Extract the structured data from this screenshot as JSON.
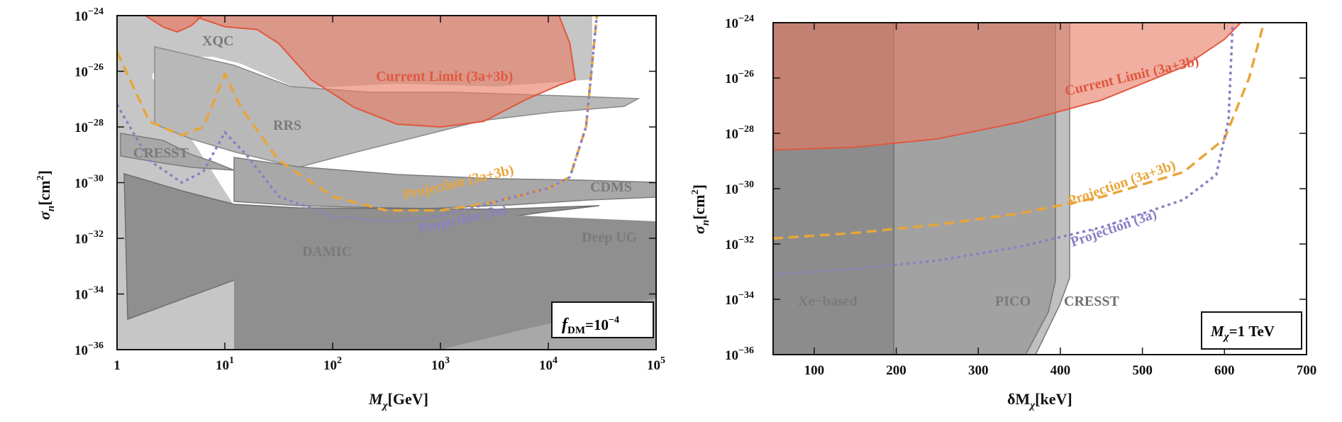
{
  "colors": {
    "limit_fill": "#e87a62",
    "limit_edge": "#e0583f",
    "projection_3a3b": "#e8a53a",
    "projection_3a": "#8a80c4",
    "region_light": "#c4c4c4",
    "region_mid": "#a6a6a6",
    "region_dark": "#8c8c8c",
    "region_label": "#7a7a7a"
  },
  "chart_data": [
    {
      "type": "line",
      "title": "",
      "xlabel_symbol": "M",
      "xlabel_sub": "χ",
      "xlabel_unit": "[GeV]",
      "ylabel_symbol": "σ",
      "ylabel_sub": "n",
      "ylabel_unit": "[cm",
      "ylabel_unit_sup": "2",
      "ylabel_close": "]",
      "x_scale": "log",
      "xlim_log10": [
        0,
        5
      ],
      "ylim_log10": [
        -36,
        -24
      ],
      "x_ticks": [
        {
          "base": "1",
          "exp": ""
        },
        {
          "base": "10",
          "exp": "1"
        },
        {
          "base": "10",
          "exp": "2"
        },
        {
          "base": "10",
          "exp": "3"
        },
        {
          "base": "10",
          "exp": "4"
        },
        {
          "base": "10",
          "exp": "5"
        }
      ],
      "y_ticks": [
        {
          "base": "10",
          "exp": "−24"
        },
        {
          "base": "10",
          "exp": "−26"
        },
        {
          "base": "10",
          "exp": "−28"
        },
        {
          "base": "10",
          "exp": "−30"
        },
        {
          "base": "10",
          "exp": "−32"
        },
        {
          "base": "10",
          "exp": "−34"
        },
        {
          "base": "10",
          "exp": "−36"
        }
      ],
      "annotation_box": {
        "symbol": "f",
        "sub": "DM",
        "text": "=10",
        "sup": "−4"
      },
      "region_labels": [
        "XQC",
        "RRS",
        "CRESST",
        "CDMS",
        "DAMIC",
        "Deep UG"
      ],
      "series": [
        {
          "name": "Current Limit (3a+3b)",
          "style": "filled",
          "points_log10": [
            [
              0.7,
              -24
            ],
            [
              1.0,
              -24.4
            ],
            [
              1.3,
              -24.5
            ],
            [
              1.5,
              -25.0
            ],
            [
              1.8,
              -26.3
            ],
            [
              2.2,
              -27.3
            ],
            [
              2.6,
              -27.9
            ],
            [
              3.0,
              -28.0
            ],
            [
              3.4,
              -27.8
            ],
            [
              3.8,
              -27.0
            ],
            [
              4.1,
              -26.5
            ],
            [
              4.25,
              -26.3
            ],
            [
              4.2,
              -25.0
            ],
            [
              4.1,
              -24.0
            ]
          ]
        },
        {
          "name": "Projection (3a+3b)",
          "style": "dashed",
          "points_log10": [
            [
              0,
              -25.3
            ],
            [
              0.3,
              -27.8
            ],
            [
              0.6,
              -28.3
            ],
            [
              0.8,
              -28.0
            ],
            [
              1.0,
              -26.1
            ],
            [
              1.15,
              -27.3
            ],
            [
              1.5,
              -29.2
            ],
            [
              2.0,
              -30.5
            ],
            [
              2.5,
              -31.0
            ],
            [
              3.0,
              -31.0
            ],
            [
              3.5,
              -30.7
            ],
            [
              4.0,
              -30.2
            ],
            [
              4.2,
              -29.8
            ],
            [
              4.35,
              -28.0
            ],
            [
              4.45,
              -24.0
            ]
          ]
        },
        {
          "name": "Projection (3a)",
          "style": "dotted",
          "points_log10": [
            [
              0,
              -27.2
            ],
            [
              0.3,
              -29.2
            ],
            [
              0.6,
              -30.0
            ],
            [
              0.8,
              -29.6
            ],
            [
              1.0,
              -28.2
            ],
            [
              1.2,
              -29.0
            ],
            [
              1.5,
              -30.5
            ],
            [
              2.0,
              -31.2
            ],
            [
              2.5,
              -31.4
            ],
            [
              3.0,
              -31.2
            ],
            [
              3.5,
              -30.7
            ],
            [
              4.0,
              -30.2
            ],
            [
              4.2,
              -29.8
            ],
            [
              4.35,
              -28.0
            ],
            [
              4.45,
              -24.0
            ]
          ]
        }
      ]
    },
    {
      "type": "line",
      "title": "",
      "xlabel_symbol": "δM",
      "xlabel_sub": "χ",
      "xlabel_unit": "[keV]",
      "ylabel_symbol": "σ",
      "ylabel_sub": "n",
      "ylabel_unit": "[cm",
      "ylabel_unit_sup": "2",
      "ylabel_close": "]",
      "xlim": [
        50,
        700
      ],
      "ylim_log10": [
        -36,
        -24
      ],
      "x_ticks": [
        "100",
        "200",
        "300",
        "400",
        "500",
        "600",
        "700"
      ],
      "y_ticks": [
        {
          "base": "10",
          "exp": "−24"
        },
        {
          "base": "10",
          "exp": "−26"
        },
        {
          "base": "10",
          "exp": "−28"
        },
        {
          "base": "10",
          "exp": "−30"
        },
        {
          "base": "10",
          "exp": "−32"
        },
        {
          "base": "10",
          "exp": "−34"
        },
        {
          "base": "10",
          "exp": "−36"
        }
      ],
      "annotation_box": {
        "symbol": "M",
        "sub": "χ",
        "text": "=1 TeV"
      },
      "region_labels": [
        "Xe−based",
        "PICO",
        "CRESST"
      ],
      "series": [
        {
          "name": "Current Limit (3a+3b)",
          "style": "filled",
          "points": [
            [
              50,
              -28.6
            ],
            [
              150,
              -28.5
            ],
            [
              250,
              -28.2
            ],
            [
              350,
              -27.6
            ],
            [
              450,
              -26.8
            ],
            [
              550,
              -25.6
            ],
            [
              600,
              -24.6
            ],
            [
              620,
              -24.0
            ]
          ]
        },
        {
          "name": "Projection (3a+3b)",
          "style": "dashed",
          "points": [
            [
              50,
              -31.8
            ],
            [
              150,
              -31.6
            ],
            [
              250,
              -31.3
            ],
            [
              350,
              -30.9
            ],
            [
              450,
              -30.3
            ],
            [
              550,
              -29.4
            ],
            [
              600,
              -28.2
            ],
            [
              630,
              -26.0
            ],
            [
              648,
              -24.0
            ]
          ]
        },
        {
          "name": "Projection (3a)",
          "style": "dotted",
          "points": [
            [
              50,
              -33.1
            ],
            [
              150,
              -32.9
            ],
            [
              250,
              -32.6
            ],
            [
              350,
              -32.1
            ],
            [
              450,
              -31.4
            ],
            [
              550,
              -30.4
            ],
            [
              590,
              -29.5
            ],
            [
              605,
              -27.5
            ],
            [
              610,
              -24.0
            ]
          ]
        }
      ]
    }
  ]
}
